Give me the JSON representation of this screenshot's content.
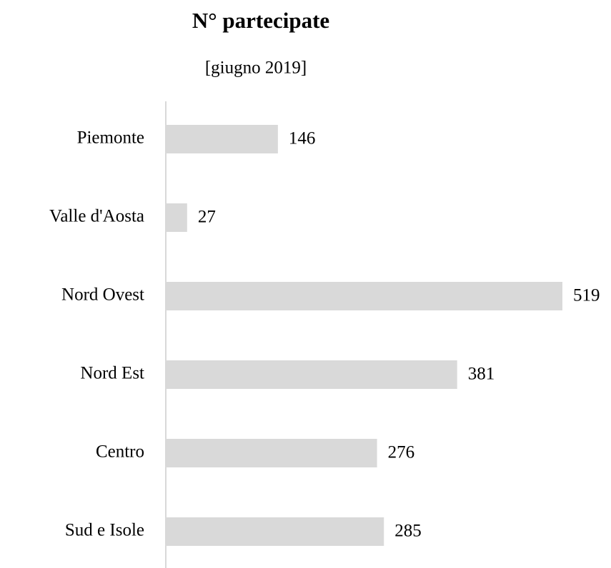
{
  "chart_data": {
    "type": "bar",
    "orientation": "horizontal",
    "title": "N° partecipate",
    "subtitle": "[giugno 2019]",
    "categories": [
      "Piemonte",
      "Valle d'Aosta",
      "Nord Ovest",
      "Nord Est",
      "Centro",
      "Sud e Isole"
    ],
    "values": [
      146,
      27,
      519,
      381,
      276,
      285
    ],
    "color": "#d9d9d9"
  }
}
